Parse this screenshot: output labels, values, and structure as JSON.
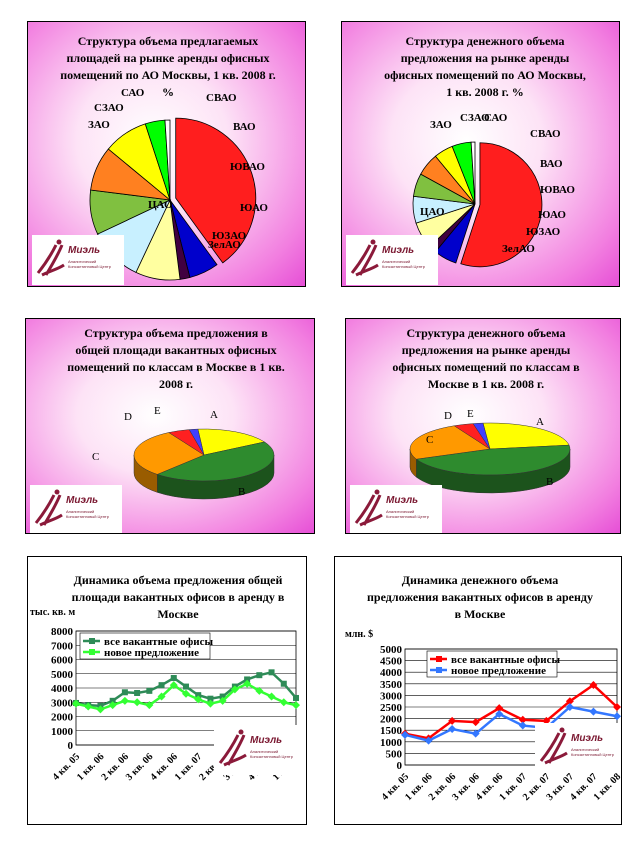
{
  "chart_data": [
    {
      "type": "pie",
      "title": "Структура объема предлагаемых площадей на рынке аренды офисных помещений по АО Москвы, 1 кв. 2008 г. %",
      "categories": [
        "ЦАО",
        "ЗАО",
        "СЗАО",
        "САО",
        "СВАО",
        "ВАО",
        "ЮВАО",
        "ЮАО",
        "ЮЗАО",
        "ЗелАО"
      ],
      "values": [
        40,
        6,
        2,
        9,
        11,
        9,
        9,
        9,
        4,
        1
      ],
      "colors": [
        "#ff1e1e",
        "#0000cc",
        "#400040",
        "#ffffa0",
        "#c8f0ff",
        "#80c040",
        "#ff8020",
        "#ffff00",
        "#00ff00",
        "#ffffff"
      ]
    },
    {
      "type": "pie",
      "title": "Структура денежного объема предложения на рынке аренды офисных помещений по АО Москвы, 1 кв. 2008 г. %",
      "categories": [
        "ЦАО",
        "ЗАО",
        "СЗАО",
        "САО",
        "СВАО",
        "ВАО",
        "ЮВАО",
        "ЮАО",
        "ЮЗАО",
        "ЗелАО"
      ],
      "values": [
        55,
        6,
        2,
        7,
        7,
        6,
        6,
        5,
        5,
        1
      ],
      "colors": [
        "#ff1e1e",
        "#0000cc",
        "#400040",
        "#ffffa0",
        "#c8f0ff",
        "#80c040",
        "#ff8020",
        "#ffff00",
        "#00ff00",
        "#ffffff"
      ]
    },
    {
      "type": "pie",
      "title": "Структура объема предложения в общей площади вакантных офисных помещений по классам в Москве в 1 кв. 2008 г.",
      "categories": [
        "A",
        "B",
        "C",
        "D",
        "E"
      ],
      "values": [
        18,
        45,
        30,
        5,
        2
      ],
      "colors": [
        "#ffff00",
        "#2e8b2e",
        "#ff9900",
        "#ff2020",
        "#4040ff"
      ]
    },
    {
      "type": "pie",
      "title": "Структура денежного объема предложения на рынке аренды офисных помещений по классам в Москве в 1 кв. 2008 г.",
      "categories": [
        "A",
        "B",
        "C",
        "D",
        "E"
      ],
      "values": [
        24,
        46,
        24,
        4,
        2
      ],
      "colors": [
        "#ffff00",
        "#2e8b2e",
        "#ff9900",
        "#ff2020",
        "#4040ff"
      ]
    },
    {
      "type": "line",
      "title": "Динамика объема предложения общей площади вакантных офисов в аренду в Москве",
      "ylabel": "тыс. кв. м",
      "ylim": [
        0,
        8000
      ],
      "yticks": [
        "0",
        "1000",
        "2000",
        "3000",
        "4000",
        "5000",
        "6000",
        "7000",
        "8000"
      ],
      "categories": [
        "4 кв. 05",
        "1 кв. 06",
        "2 кв. 06",
        "3 кв. 06",
        "4 кв. 06",
        "1 кв. 07",
        "2 кв. 07",
        "3 кв. 07",
        "4 кв. 07",
        "1 кв. 08"
      ],
      "x": [
        "4 кв. 05",
        "",
        "1 кв. 06",
        "",
        "2 кв. 06",
        "",
        "3 кв. 06",
        "",
        "4 кв. 06",
        "",
        "1 кв. 07",
        "",
        "2 кв. 07",
        "",
        "3 кв. 07",
        "",
        "4 кв. 07",
        "",
        "1 кв. 08"
      ],
      "series": [
        {
          "name": "все вакантные офисы",
          "color": "#2e8b57",
          "values": [
            2950,
            2800,
            2750,
            3100,
            3700,
            3650,
            3800,
            4200,
            4700,
            4100,
            3500,
            3250,
            3400,
            4100,
            4600,
            4900,
            5100,
            4300,
            3300
          ]
        },
        {
          "name": "новое предложение",
          "color": "#33ff33",
          "values": [
            2900,
            2700,
            2500,
            2800,
            3100,
            3000,
            2800,
            3400,
            4200,
            3600,
            3200,
            2900,
            3100,
            3900,
            4300,
            3800,
            3400,
            3000,
            2800
          ]
        }
      ]
    },
    {
      "type": "line",
      "title": "Динамика денежного объема предложения вакантных офисов в аренду в Москве",
      "ylabel": "млн. $",
      "ylim": [
        0,
        5000
      ],
      "yticks": [
        "0",
        "500",
        "1000",
        "1500",
        "2000",
        "2500",
        "3000",
        "3500",
        "4000",
        "4500",
        "5000"
      ],
      "categories": [
        "4 кв. 05",
        "1 кв. 06",
        "2 кв. 06",
        "3 кв. 06",
        "4 кв. 06",
        "1 кв. 07",
        "2 кв. 07",
        "3 кв. 07",
        "4 кв. 07",
        "1 кв. 08"
      ],
      "series": [
        {
          "name": "все вакантные офисы",
          "color": "#ff0000",
          "values": [
            1350,
            1150,
            1900,
            1850,
            2450,
            1950,
            1900,
            2750,
            3450,
            2500
          ]
        },
        {
          "name": "новое предложение",
          "color": "#3377ff",
          "values": [
            1300,
            1050,
            1550,
            1350,
            2200,
            1700,
            1600,
            2500,
            2300,
            2100
          ]
        }
      ]
    }
  ],
  "logo": {
    "brand": "Миэль",
    "tagline": "Аналитический Консалтинговый Центр"
  }
}
